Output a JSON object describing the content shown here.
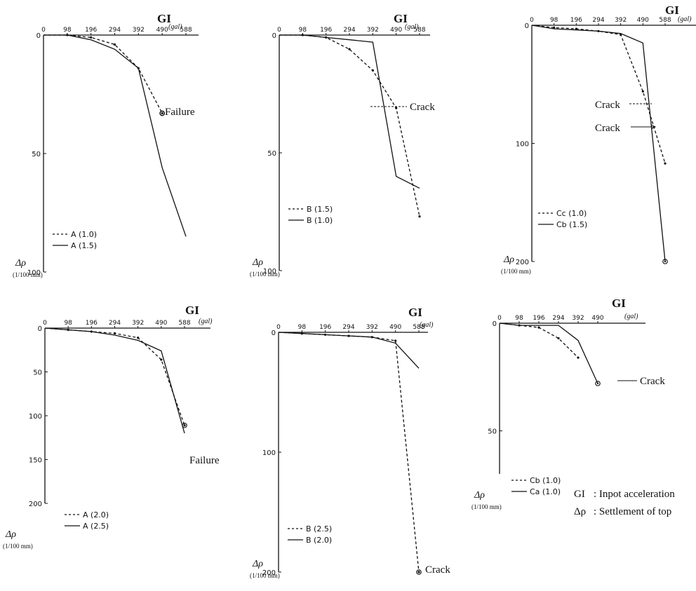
{
  "chart_data": [
    {
      "type": "line",
      "x_axis_label": "GI",
      "x_unit": "(gal)",
      "x_ticks": [
        0,
        98,
        196,
        294,
        392,
        490,
        588
      ],
      "y_axis_label": "Δρ",
      "y_unit": "(1/100 mm)",
      "y_ticks": [
        0,
        50,
        100
      ],
      "ylim": [
        0,
        100
      ],
      "legend": "bottom-left",
      "series": [
        {
          "name": "A (1.0)",
          "style": "dashed",
          "x": [
            0,
            98,
            196,
            294,
            392,
            490
          ],
          "y": [
            0,
            0,
            1,
            4,
            14,
            33
          ]
        },
        {
          "name": "A (1.5)",
          "style": "solid",
          "x": [
            0,
            98,
            196,
            294,
            392,
            490,
            588
          ],
          "y": [
            0,
            0,
            2,
            6,
            14,
            56,
            85
          ]
        }
      ],
      "annotations": [
        {
          "text": "Failure",
          "series": 0,
          "point": 5
        }
      ]
    },
    {
      "type": "line",
      "x_axis_label": "GI",
      "x_unit": "(gal)",
      "x_ticks": [
        0,
        98,
        196,
        294,
        392,
        490,
        588
      ],
      "y_axis_label": "Δρ",
      "y_unit": "(1/100 mm)",
      "y_ticks": [
        0,
        50,
        100
      ],
      "ylim": [
        0,
        100
      ],
      "legend": "bottom-left",
      "series": [
        {
          "name": "B (1.5)",
          "style": "dashed",
          "x": [
            0,
            98,
            196,
            294,
            392,
            490,
            588
          ],
          "y": [
            0,
            0,
            1,
            6,
            15,
            31,
            77
          ]
        },
        {
          "name": "B (1.0)",
          "style": "solid",
          "x": [
            0,
            98,
            196,
            294,
            392,
            490,
            588
          ],
          "y": [
            0,
            0,
            1,
            2,
            3,
            60,
            65
          ]
        }
      ],
      "annotations": [
        {
          "text": "Crack",
          "series": 0,
          "point": 5
        }
      ]
    },
    {
      "type": "line",
      "x_axis_label": "GI",
      "x_unit": "(gal)",
      "x_ticks": [
        0,
        98,
        196,
        294,
        392,
        490,
        588
      ],
      "y_axis_label": "Δρ",
      "y_unit": "(1/100 mm)",
      "y_ticks": [
        0,
        100,
        200
      ],
      "ylim": [
        0,
        200
      ],
      "legend": "bottom-left",
      "series": [
        {
          "name": "Cc (1.0)",
          "style": "dashed",
          "x": [
            0,
            98,
            196,
            294,
            392,
            490,
            588
          ],
          "y": [
            0,
            2,
            3,
            5,
            8,
            56,
            117
          ]
        },
        {
          "name": "Cb (1.5)",
          "style": "solid",
          "x": [
            0,
            98,
            196,
            294,
            392,
            490,
            588
          ],
          "y": [
            0,
            3,
            4,
            5,
            7,
            15,
            200
          ]
        }
      ],
      "annotations": [
        {
          "text": "Crack",
          "series": 0,
          "point": 5
        },
        {
          "text": "Crack",
          "series": 1,
          "at": {
            "x": 532,
            "y": 94
          }
        }
      ]
    },
    {
      "type": "line",
      "x_axis_label": "GI",
      "x_unit": "(gal)",
      "x_ticks": [
        0,
        98,
        196,
        294,
        392,
        490,
        588
      ],
      "y_axis_label": "Δρ",
      "y_unit": "(1/100 mm)",
      "y_ticks": [
        0,
        50,
        100,
        150,
        200
      ],
      "ylim": [
        0,
        200
      ],
      "legend": "bottom-left",
      "series": [
        {
          "name": "A (2.0)",
          "style": "dashed",
          "x": [
            0,
            98,
            196,
            294,
            392,
            490,
            588
          ],
          "y": [
            0,
            2,
            4,
            6,
            11,
            36,
            111
          ]
        },
        {
          "name": "A (2.5)",
          "style": "solid",
          "x": [
            0,
            98,
            196,
            294,
            392,
            490,
            588
          ],
          "y": [
            0,
            2,
            4,
            8,
            14,
            26,
            120
          ]
        }
      ],
      "annotations": [
        {
          "text": "Failure",
          "series": 0,
          "point": 6
        }
      ]
    },
    {
      "type": "line",
      "x_axis_label": "GI",
      "x_unit": "(gal)",
      "x_ticks": [
        0,
        98,
        196,
        294,
        392,
        490,
        588
      ],
      "y_axis_label": "Δρ",
      "y_unit": "(1/100 mm)",
      "y_ticks": [
        0,
        100,
        200
      ],
      "ylim": [
        0,
        200
      ],
      "legend": "bottom-left",
      "series": [
        {
          "name": "B (2.5)",
          "style": "dashed",
          "x": [
            0,
            98,
            196,
            294,
            392,
            490,
            588
          ],
          "y": [
            0,
            1,
            2,
            3,
            4,
            7,
            200
          ]
        },
        {
          "name": "B (2.0)",
          "style": "solid",
          "x": [
            0,
            98,
            196,
            294,
            392,
            490,
            588
          ],
          "y": [
            0,
            1,
            2,
            3,
            4,
            9,
            30
          ]
        }
      ],
      "annotations": [
        {
          "text": "Crack",
          "series": 0,
          "point": 6
        }
      ]
    },
    {
      "type": "line",
      "x_axis_label": "GI",
      "x_unit": "(gal)",
      "x_ticks": [
        0,
        98,
        196,
        294,
        392,
        490
      ],
      "y_axis_label": "Δρ",
      "y_unit": "(1/100 mm)",
      "y_ticks": [
        0,
        50
      ],
      "ylim": [
        0,
        70
      ],
      "legend": "bottom-left",
      "series": [
        {
          "name": "Cb (1.0)",
          "style": "dashed",
          "x": [
            0,
            98,
            196,
            294,
            392
          ],
          "y": [
            0,
            1,
            2,
            7,
            16
          ]
        },
        {
          "name": "Ca (1.0)",
          "style": "solid",
          "x": [
            0,
            98,
            196,
            294,
            392,
            490
          ],
          "y": [
            0,
            1,
            1,
            1,
            8,
            28
          ]
        }
      ],
      "annotations": [
        {
          "text": "Crack",
          "series": 1,
          "point": 5
        }
      ]
    }
  ],
  "notes": [
    {
      "key": "GI",
      "text": ": Inpot acceleration"
    },
    {
      "key": "Δρ",
      "text": ": Settlement of top"
    }
  ]
}
